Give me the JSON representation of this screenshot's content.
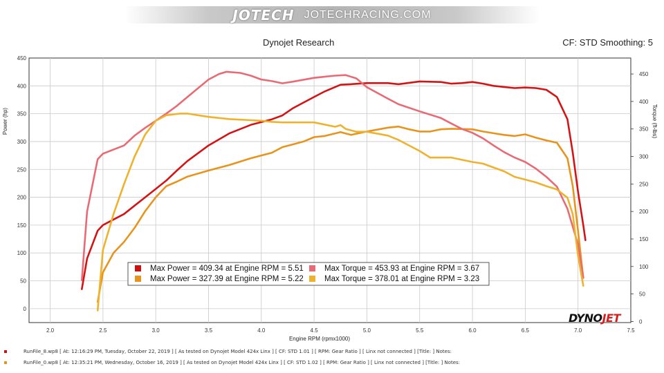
{
  "header": {
    "brand_logo": "JOTECH",
    "site": "JOTECHRACING.COM"
  },
  "footer_logo": {
    "part1": "DYNO",
    "part2": "JET"
  },
  "run_notes": [
    {
      "text": "RunFile_8.wp8  [  At:  12:16:29 PM, Tuesday, October 22, 2019  ]  [  As tested on Dynojet Model 424x Linx  ]  [  CF: STD 1.01  ]  [  RPM: Gear Ratio  ]  [  Linx not connected  ]  [Title:  ]   Notes:",
      "color": "#cc1111"
    },
    {
      "text": "RunFile_0.wp8  [  At:  12:35:21 PM, Wednesday, October 16, 2019  ]  [  As tested on Dynojet Model 424x Linx  ]  [  CF: STD 1.02  ]  [  RPM: Gear Ratio  ]  [  Linx not connected  ]  [Title:  ]   Notes:",
      "color": "#e8941c"
    }
  ],
  "chart_data": {
    "type": "line",
    "title": "Dynojet Research",
    "subtitle": "CF: STD Smoothing: 5",
    "xlabel": "Engine RPM (rpmx1000)",
    "ylabel": "Power (hp)",
    "y2label": "Torque (ft-lbs)",
    "xlim": [
      1.8,
      7.5
    ],
    "ylim": [
      -25,
      450
    ],
    "y2lim": [
      -2,
      479
    ],
    "xticks": [
      "2.0",
      "2.5",
      "3.0",
      "3.5",
      "4.0",
      "4.5",
      "5.0",
      "5.5",
      "6.0",
      "6.5",
      "7.0",
      "7.5"
    ],
    "yticks": [
      "0",
      "50",
      "100",
      "150",
      "200",
      "250",
      "300",
      "350",
      "400",
      "450"
    ],
    "y2ticks": [
      "0",
      "50",
      "100",
      "150",
      "200",
      "250",
      "300",
      "350",
      "400",
      "450"
    ],
    "grid": true,
    "series": [
      {
        "name": "Power RunFile_8",
        "axis": "left",
        "color": "#d41414",
        "x": [
          2.3,
          2.35,
          2.45,
          2.5,
          2.6,
          2.7,
          2.8,
          2.9,
          3.0,
          3.1,
          3.2,
          3.3,
          3.5,
          3.7,
          3.9,
          4.0,
          4.1,
          4.2,
          4.3,
          4.4,
          4.5,
          4.6,
          4.75,
          4.85,
          5.0,
          5.2,
          5.3,
          5.5,
          5.7,
          5.8,
          5.9,
          6.0,
          6.1,
          6.2,
          6.3,
          6.4,
          6.5,
          6.6,
          6.7,
          6.8,
          6.9,
          6.95,
          7.0,
          7.05,
          7.07
        ],
        "y": [
          35,
          90,
          140,
          150,
          160,
          170,
          185,
          200,
          215,
          230,
          248,
          265,
          293,
          315,
          330,
          335,
          340,
          347,
          360,
          370,
          380,
          390,
          402,
          403,
          405,
          405,
          403,
          408,
          407,
          404,
          405,
          407,
          404,
          400,
          398,
          396,
          397,
          396,
          393,
          380,
          340,
          280,
          210,
          150,
          123
        ]
      },
      {
        "name": "Power RunFile_0",
        "axis": "left",
        "color": "#e8941c",
        "x": [
          2.45,
          2.5,
          2.6,
          2.7,
          2.8,
          2.9,
          3.0,
          3.1,
          3.2,
          3.3,
          3.5,
          3.7,
          3.9,
          4.0,
          4.1,
          4.2,
          4.3,
          4.4,
          4.5,
          4.6,
          4.75,
          4.85,
          5.0,
          5.2,
          5.3,
          5.4,
          5.5,
          5.6,
          5.7,
          5.8,
          6.0,
          6.1,
          6.2,
          6.3,
          6.4,
          6.5,
          6.6,
          6.7,
          6.8,
          6.9,
          6.95,
          7.0,
          7.05
        ],
        "y": [
          12,
          65,
          100,
          120,
          145,
          175,
          200,
          220,
          228,
          237,
          248,
          258,
          270,
          275,
          280,
          290,
          295,
          300,
          308,
          310,
          317,
          312,
          318,
          325,
          327,
          322,
          318,
          318,
          322,
          323,
          322,
          318,
          315,
          312,
          310,
          313,
          307,
          302,
          298,
          270,
          220,
          140,
          55
        ]
      },
      {
        "name": "Torque RunFile_8",
        "axis": "right",
        "color": "#e86a74",
        "x": [
          2.3,
          2.35,
          2.45,
          2.5,
          2.7,
          2.8,
          2.9,
          3.0,
          3.1,
          3.2,
          3.3,
          3.5,
          3.6,
          3.67,
          3.8,
          3.9,
          4.0,
          4.1,
          4.2,
          4.3,
          4.5,
          4.6,
          4.7,
          4.8,
          4.9,
          5.0,
          5.2,
          5.3,
          5.5,
          5.7,
          5.8,
          5.9,
          6.0,
          6.1,
          6.2,
          6.3,
          6.4,
          6.5,
          6.6,
          6.7,
          6.8,
          6.9,
          7.0,
          7.05
        ],
        "y": [
          75,
          200,
          295,
          305,
          320,
          338,
          352,
          365,
          378,
          392,
          408,
          440,
          450,
          454,
          452,
          447,
          440,
          437,
          433,
          436,
          443,
          445,
          447,
          448,
          442,
          426,
          405,
          395,
          382,
          370,
          360,
          350,
          343,
          333,
          320,
          308,
          298,
          290,
          278,
          263,
          245,
          205,
          140,
          80
        ]
      },
      {
        "name": "Torque RunFile_0",
        "axis": "right",
        "color": "#efb22c",
        "x": [
          2.45,
          2.5,
          2.6,
          2.7,
          2.8,
          2.9,
          3.0,
          3.1,
          3.23,
          3.3,
          3.4,
          3.5,
          3.6,
          3.7,
          3.8,
          3.9,
          4.0,
          4.1,
          4.2,
          4.3,
          4.5,
          4.7,
          4.75,
          4.8,
          4.9,
          5.0,
          5.2,
          5.3,
          5.5,
          5.6,
          5.8,
          6.0,
          6.1,
          6.2,
          6.3,
          6.4,
          6.5,
          6.6,
          6.7,
          6.8,
          6.9,
          6.95,
          7.0,
          7.05
        ],
        "y": [
          20,
          130,
          195,
          250,
          300,
          340,
          365,
          375,
          378,
          378,
          375,
          372,
          370,
          368,
          367,
          366,
          365,
          363,
          362,
          362,
          362,
          354,
          357,
          350,
          345,
          345,
          338,
          330,
          310,
          298,
          298,
          290,
          287,
          280,
          273,
          263,
          258,
          253,
          246,
          240,
          225,
          195,
          120,
          65
        ]
      }
    ],
    "legend": {
      "position": "bottom-center",
      "entries": [
        {
          "text": "Max Power = 409.34 at Engine RPM = 5.51",
          "color": "#cc1111"
        },
        {
          "text": "Max Torque = 453.93 at Engine RPM = 3.67",
          "color": "#e86a74"
        },
        {
          "text": "Max Power = 327.39 at Engine RPM = 5.22",
          "color": "#e8941c"
        },
        {
          "text": "Max Torque = 378.01 at Engine RPM = 3.23",
          "color": "#efb22c"
        }
      ]
    }
  }
}
